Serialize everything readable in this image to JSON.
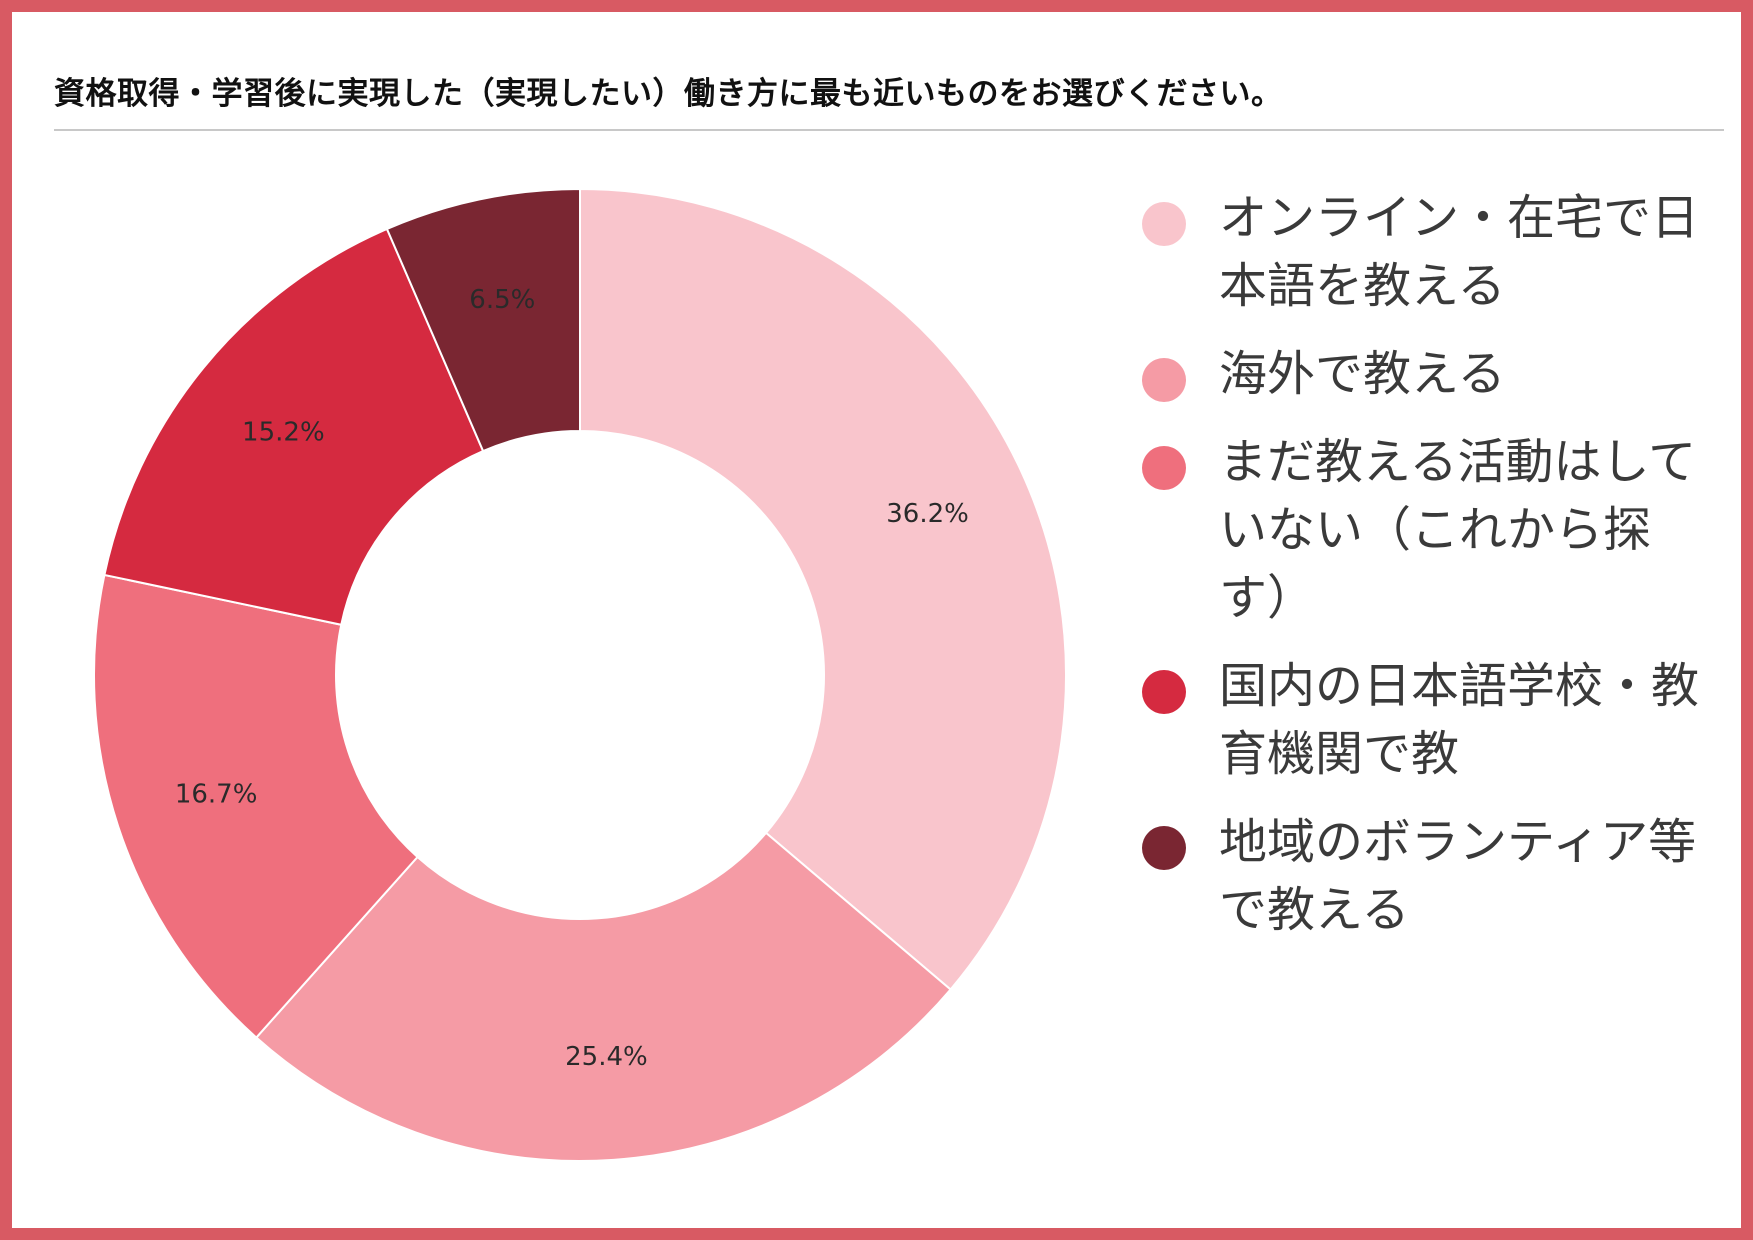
{
  "title": "資格取得・学習後に実現した（実現したい）働き方に最も近いものをお選びください。",
  "chart_data": {
    "type": "pie",
    "donut": true,
    "legend_position": "right",
    "slices": [
      {
        "label": "オンライン・在宅で日本語を教える",
        "value": 36.2,
        "value_label": "36.2%",
        "color": "#f9c5cc"
      },
      {
        "label": "海外で教える",
        "value": 25.4,
        "value_label": "25.4%",
        "color": "#f59ba5"
      },
      {
        "label": "まだ教える活動はしていない（これから探す）",
        "value": 16.7,
        "value_label": "16.7%",
        "color": "#ef6f7d"
      },
      {
        "label": "国内の日本語学校・教育機関で教",
        "value": 15.2,
        "value_label": "15.2%",
        "color": "#d52a40"
      },
      {
        "label": "地域のボランティア等で教える",
        "value": 6.5,
        "value_label": "6.5%",
        "color": "#7a2632"
      }
    ]
  }
}
